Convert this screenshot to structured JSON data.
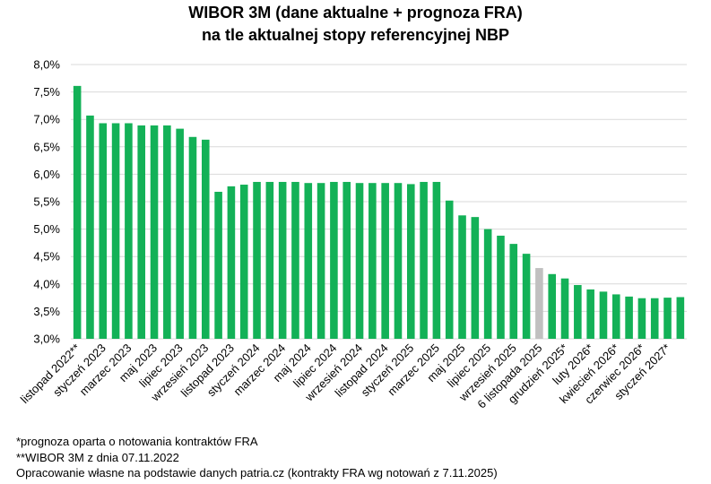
{
  "chart_data": {
    "type": "bar",
    "title_lines": [
      "WIBOR 3M (dane aktualne + prognoza FRA)",
      "na tle aktualnej stopy referencyjnej NBP"
    ],
    "xlabel": "",
    "ylabel": "",
    "ylim": [
      3.0,
      8.0
    ],
    "yticks": [
      "3,0%",
      "3,5%",
      "4,0%",
      "4,5%",
      "5,0%",
      "5,5%",
      "6,0%",
      "6,5%",
      "7,0%",
      "7,5%",
      "8,0%"
    ],
    "ytick_values": [
      3.0,
      3.5,
      4.0,
      4.5,
      5.0,
      5.5,
      6.0,
      6.5,
      7.0,
      7.5,
      8.0
    ],
    "grid": true,
    "legend": "none",
    "bar_color": "#13b157",
    "highlight_color": "#c0c0c0",
    "highlight_index": 36,
    "values": [
      7.61,
      7.07,
      6.93,
      6.93,
      6.93,
      6.89,
      6.89,
      6.89,
      6.83,
      6.68,
      6.63,
      5.68,
      5.78,
      5.81,
      5.86,
      5.86,
      5.86,
      5.86,
      5.84,
      5.84,
      5.86,
      5.86,
      5.84,
      5.84,
      5.84,
      5.84,
      5.82,
      5.86,
      5.86,
      5.52,
      5.25,
      5.22,
      5.0,
      4.88,
      4.73,
      4.55,
      4.29,
      4.18,
      4.1,
      3.98,
      3.9,
      3.86,
      3.81,
      3.77,
      3.74,
      3.74,
      3.75,
      3.76
    ],
    "x_tick_labels": [
      {
        "index": 0,
        "label": "listopad 2022**"
      },
      {
        "index": 2,
        "label": "styczeń 2023"
      },
      {
        "index": 4,
        "label": "marzec 2023"
      },
      {
        "index": 6,
        "label": "maj 2023"
      },
      {
        "index": 8,
        "label": "lipiec 2023"
      },
      {
        "index": 10,
        "label": "wrzesień 2023"
      },
      {
        "index": 12,
        "label": "listopad 2023"
      },
      {
        "index": 14,
        "label": "styczeń 2024"
      },
      {
        "index": 16,
        "label": "marzec 2024"
      },
      {
        "index": 18,
        "label": "maj 2024"
      },
      {
        "index": 20,
        "label": "lipiec 2024"
      },
      {
        "index": 22,
        "label": "wrzesień 2024"
      },
      {
        "index": 24,
        "label": "listopad 2024"
      },
      {
        "index": 26,
        "label": "styczeń 2025"
      },
      {
        "index": 28,
        "label": "marzec 2025"
      },
      {
        "index": 30,
        "label": "maj 2025"
      },
      {
        "index": 32,
        "label": "lipiec 2025"
      },
      {
        "index": 34,
        "label": "wrzesień 2025"
      },
      {
        "index": 36,
        "label": "6 listopada 2025"
      },
      {
        "index": 38,
        "label": "grudzień 2025*"
      },
      {
        "index": 40,
        "label": "luty 2026*"
      },
      {
        "index": 42,
        "label": "kwiecień 2026*"
      },
      {
        "index": 44,
        "label": "czerwiec 2026*"
      },
      {
        "index": 46,
        "label": "styczeń 2027*"
      }
    ]
  },
  "footnotes": {
    "line1": "*prognoza oparta o notowania kontraktów FRA",
    "line2": "**WIBOR 3M z dnia 07.11.2022",
    "line3": "Opracowanie własne na podstawie danych patria.cz (kontrakty FRA wg notowań z 7.11.2025)"
  }
}
